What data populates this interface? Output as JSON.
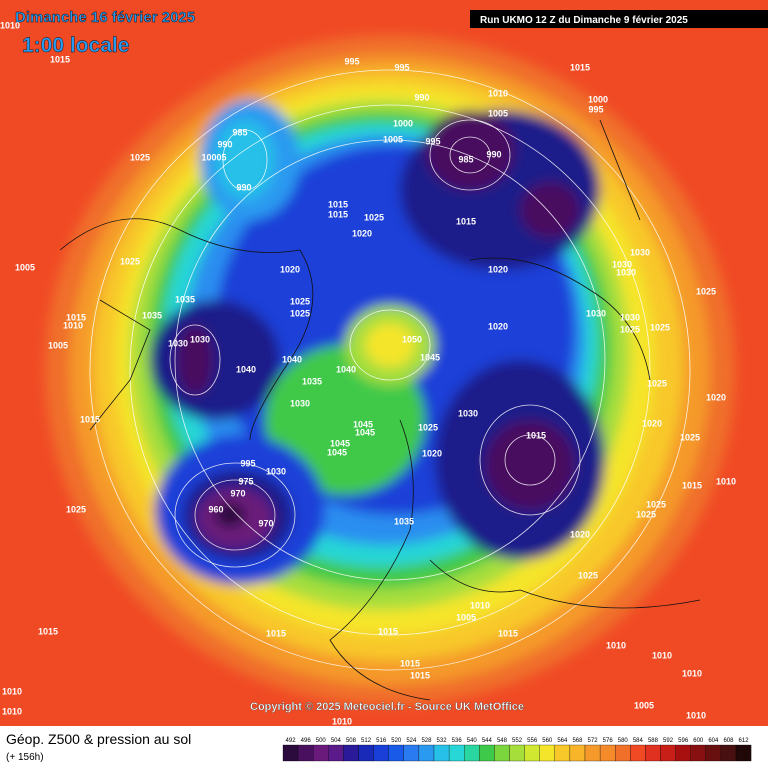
{
  "header": {
    "title": "Dimanche 16 février 2025",
    "time": "1:00 locale",
    "run": "Run UKMO 12 Z du Dimanche 9 février 2025"
  },
  "map": {
    "pressure_labels": [
      1010,
      1015,
      995,
      995,
      1015,
      1010,
      1005,
      1000,
      995,
      990,
      1000,
      1005,
      995,
      985,
      990,
      985,
      990,
      1025,
      10005,
      990,
      1015,
      1015,
      1025,
      1020,
      1015,
      1030,
      1030,
      1030,
      1020,
      1020,
      1005,
      1025,
      1025,
      1035,
      1025,
      1025,
      1015,
      1010,
      1035,
      1030,
      1030,
      1025,
      1025,
      1020,
      1030,
      1030,
      1050,
      1005,
      1040,
      1045,
      1040,
      1040,
      1035,
      1025,
      1020,
      1030,
      1030,
      1015,
      1045,
      1045,
      1025,
      1015,
      1020,
      1025,
      1045,
      1045,
      1020,
      995,
      1030,
      975,
      970,
      1015,
      1010,
      1025,
      960,
      970,
      1025,
      1025,
      1035,
      1020,
      1025,
      1010,
      1005,
      1015,
      1015,
      1015,
      1015,
      1015,
      1015,
      1010,
      1010,
      1010,
      1005,
      1010,
      1010,
      1010,
      1010
    ]
  },
  "footer": {
    "copyright": "Copyright © 2025 Meteociel.fr - Source UK MetOffice",
    "title": "Géop. Z500 & pression au sol",
    "lead": "(+ 156h)"
  },
  "scale": {
    "values": [
      492,
      496,
      500,
      504,
      508,
      512,
      516,
      520,
      524,
      528,
      532,
      536,
      540,
      544,
      548,
      552,
      556,
      560,
      564,
      568,
      572,
      576,
      580,
      584,
      588,
      592,
      596,
      600,
      604,
      608,
      612
    ],
    "colors": [
      "#2b0a3d",
      "#4a1060",
      "#6a1a7a",
      "#5a1a8a",
      "#2a1a9a",
      "#1a2ab8",
      "#1a3fd8",
      "#1a5ae8",
      "#2a7af0",
      "#2a9af0",
      "#27c0e8",
      "#27d6d6",
      "#2ad6a0",
      "#3fc94a",
      "#7ad63c",
      "#a6de3c",
      "#d0e830",
      "#f5e52a",
      "#f8c82a",
      "#f8b52a",
      "#f59a2a",
      "#f58a2a",
      "#f0702a",
      "#f04a25",
      "#e03020",
      "#c82018",
      "#a81010",
      "#881010",
      "#681010",
      "#481010",
      "#200808"
    ]
  }
}
